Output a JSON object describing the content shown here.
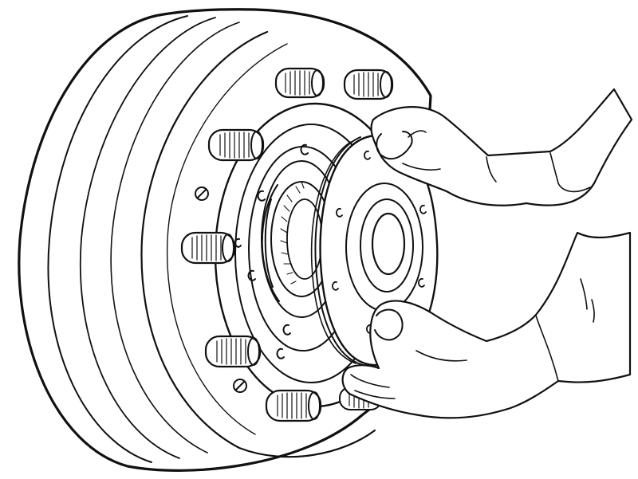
{
  "figure": {
    "subject": "drum-hub-bearing-cap-removal",
    "ink_color": "#111111",
    "paper_color": "#ffffff",
    "stud_count": 7,
    "flange_bolt_count": 6,
    "cap_bolt_count": 6
  }
}
